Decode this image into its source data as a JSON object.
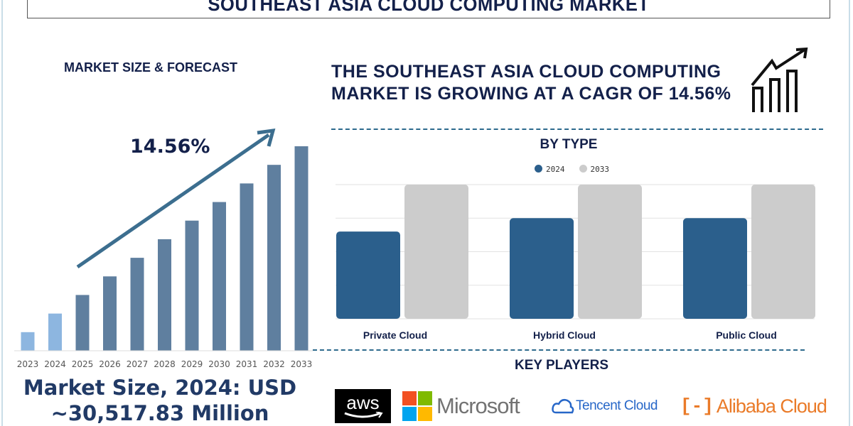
{
  "title": "SOUTHEAST ASIA CLOUD COMPUTING MARKET",
  "left_panel": {
    "heading": "MARKET SIZE & FORECAST",
    "cagr_label": "14.56%",
    "market_size_line1": "Market Size, 2024: USD",
    "market_size_line2": "~30,517.83 Million"
  },
  "headline": "THE SOUTHEAST ASIA CLOUD COMPUTING MARKET IS GROWING AT A CAGR OF 14.56%",
  "key_players": {
    "heading": "KEY PLAYERS",
    "logos": [
      "aws",
      "Microsoft",
      "Tencent Cloud",
      "Alibaba Cloud"
    ]
  },
  "colors": {
    "navy": "#13204a",
    "bar_2024": "#2b5f8c",
    "bar_2033": "#cccccc",
    "forecast_bar": "#5f7f9f",
    "history_bar": "#8db6e0",
    "arrow": "#3c6e8f"
  },
  "chart_data": [
    {
      "type": "bar",
      "title": "MARKET SIZE & FORECAST",
      "categories": [
        "2023",
        "2024",
        "2025",
        "2026",
        "2027",
        "2028",
        "2029",
        "2030",
        "2031",
        "2032",
        "2033"
      ],
      "values": [
        1,
        2,
        3,
        4,
        5,
        6,
        7,
        8,
        9,
        10,
        11
      ],
      "annotation": "14.56%",
      "grid": false
    },
    {
      "type": "bar",
      "title": "BY TYPE",
      "categories": [
        "Private Cloud",
        "Hybrid Cloud",
        "Public Cloud"
      ],
      "series": [
        {
          "name": "2024",
          "values": [
            2.6,
            3.0,
            3.0
          ]
        },
        {
          "name": "2033",
          "values": [
            4.0,
            4.0,
            4.0
          ]
        }
      ],
      "ylim": [
        0,
        4
      ],
      "grid": true,
      "legend": "top"
    }
  ]
}
